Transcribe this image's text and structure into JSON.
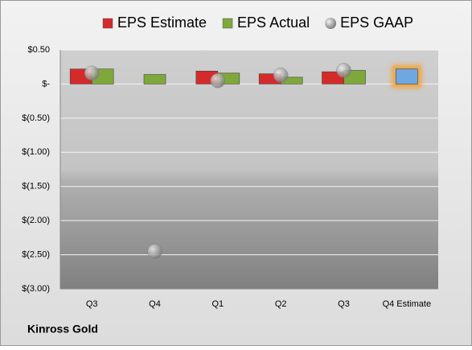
{
  "chart_data": {
    "type": "bar",
    "categories": [
      "Q3",
      "Q4",
      "Q1",
      "Q2",
      "Q3",
      "Q4 Estimate"
    ],
    "series": [
      {
        "name": "EPS Estimate",
        "color": "#d42a2a",
        "values": [
          0.22,
          null,
          0.19,
          0.15,
          0.18,
          0.22
        ],
        "highlight": {
          "index": 5,
          "color": "#6fa8e0",
          "glow": "#f5a030"
        }
      },
      {
        "name": "EPS Actual",
        "color": "#7fa83a",
        "values": [
          0.22,
          0.14,
          0.16,
          0.1,
          0.2,
          null
        ]
      },
      {
        "name": "EPS GAAP",
        "color": "#a8a8a8",
        "mark": "circle",
        "values": [
          0.16,
          -2.45,
          0.05,
          0.13,
          0.2,
          null
        ]
      }
    ],
    "ylim": [
      -3.0,
      0.5
    ],
    "yticks": [
      {
        "value": 0.5,
        "label": "$0.50"
      },
      {
        "value": 0,
        "label": "$-"
      },
      {
        "value": -0.5,
        "label": "$(0.50)"
      },
      {
        "value": -1.0,
        "label": "$(1.00)"
      },
      {
        "value": -1.5,
        "label": "$(1.50)"
      },
      {
        "value": -2.0,
        "label": "$(2.00)"
      },
      {
        "value": -2.5,
        "label": "$(2.50)"
      },
      {
        "value": -3.0,
        "label": "$(3.00)"
      }
    ],
    "grid": true,
    "footer": "Kinross Gold"
  }
}
